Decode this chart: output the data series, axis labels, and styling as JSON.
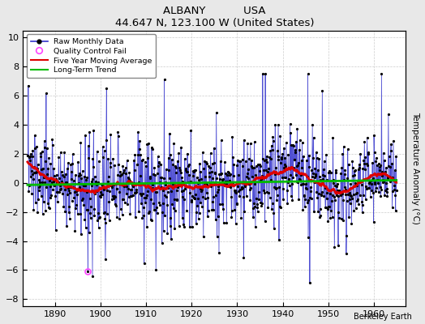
{
  "title_main": "ALBANY           USA",
  "title_sub": "44.647 N, 123.100 W (United States)",
  "ylabel": "Temperature Anomaly (°C)",
  "xlabel_annotation": "Berkeley Earth",
  "xlim": [
    1883,
    1967
  ],
  "ylim": [
    -8.5,
    10.5
  ],
  "yticks": [
    -8,
    -6,
    -4,
    -2,
    0,
    2,
    4,
    6,
    8,
    10
  ],
  "xticks": [
    1890,
    1900,
    1910,
    1920,
    1930,
    1940,
    1950,
    1960
  ],
  "bg_color": "#e8e8e8",
  "plot_bg_color": "#ffffff",
  "raw_color": "#3333cc",
  "moving_avg_color": "#dd0000",
  "trend_color": "#00bb00",
  "qc_fail_color": "#ff44ff",
  "seed": 137,
  "start_year": 1884,
  "end_year": 1964,
  "qc_fail_year": 1897,
  "qc_fail_value": -6.1
}
